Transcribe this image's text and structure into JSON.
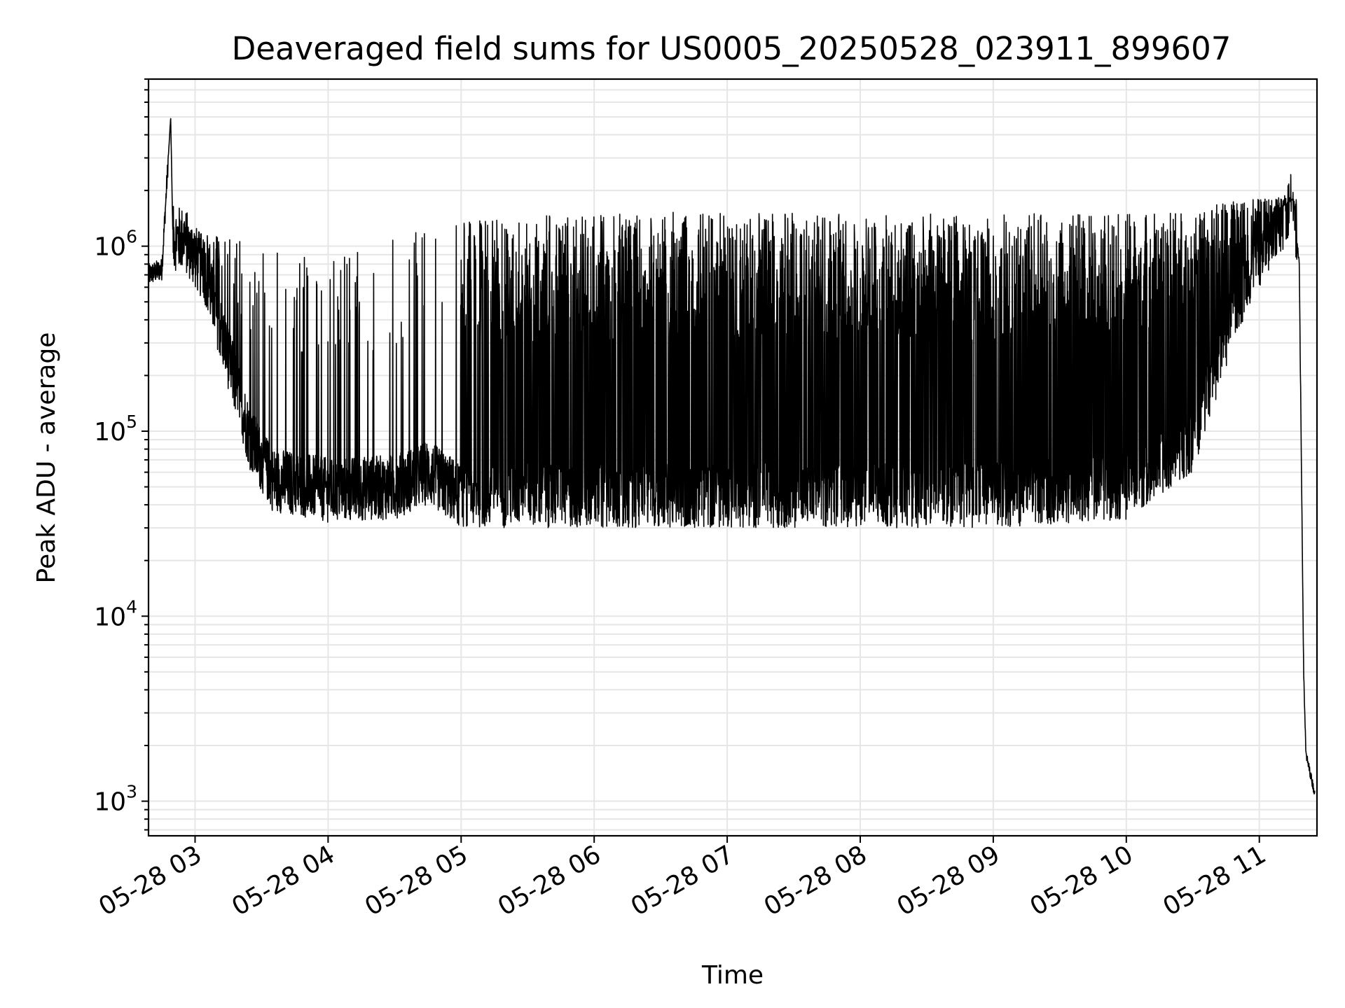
{
  "chart_data": {
    "type": "line",
    "title": "Deaveraged field sums for US0005_20250528_023911_899607",
    "xlabel": "Time",
    "ylabel": "Peak ADU - average",
    "x_axis": {
      "type": "time",
      "range": [
        "2025-05-28 02:39",
        "2025-05-28 11:26"
      ],
      "tick_labels": [
        "05-28 03",
        "05-28 04",
        "05-28 05",
        "05-28 06",
        "05-28 07",
        "05-28 08",
        "05-28 09",
        "05-28 10",
        "05-28 11"
      ],
      "tick_values": [
        "2025-05-28 03:00",
        "2025-05-28 04:00",
        "2025-05-28 05:00",
        "2025-05-28 06:00",
        "2025-05-28 07:00",
        "2025-05-28 08:00",
        "2025-05-28 09:00",
        "2025-05-28 10:00",
        "2025-05-28 11:00"
      ]
    },
    "y_axis": {
      "scale": "log",
      "range": [
        650,
        8000000
      ],
      "tick_values": [
        1000,
        10000,
        100000,
        1000000
      ],
      "tick_labels": [
        {
          "base": "10",
          "exp": "3"
        },
        {
          "base": "10",
          "exp": "4"
        },
        {
          "base": "10",
          "exp": "5"
        },
        {
          "base": "10",
          "exp": "6"
        }
      ]
    },
    "grid": true,
    "line_color": "#000000",
    "series": [
      {
        "points": [
          [
            "2025-05-28 02:39",
            700000
          ],
          [
            "2025-05-28 02:45",
            750000
          ],
          [
            "2025-05-28 02:49",
            5000000
          ],
          [
            "2025-05-28 02:50",
            1100000
          ],
          [
            "2025-05-28 02:55",
            1100000
          ],
          [
            "2025-05-28 03:05",
            700000
          ],
          [
            "2025-05-28 03:15",
            250000
          ],
          [
            "2025-05-28 03:25",
            90000
          ],
          [
            "2025-05-28 03:35",
            55000
          ],
          [
            "2025-05-28 04:00",
            48000
          ],
          [
            "2025-05-28 04:30",
            50000
          ],
          [
            "2025-05-28 04:45",
            60000
          ],
          [
            "2025-05-28 05:00",
            45000
          ],
          [
            "2025-05-28 06:00",
            45000
          ],
          [
            "2025-05-28 07:00",
            45000
          ],
          [
            "2025-05-28 08:00",
            45000
          ],
          [
            "2025-05-28 09:00",
            45000
          ],
          [
            "2025-05-28 10:00",
            50000
          ],
          [
            "2025-05-28 10:30",
            90000
          ],
          [
            "2025-05-28 10:50",
            500000
          ],
          [
            "2025-05-28 11:00",
            900000
          ],
          [
            "2025-05-28 11:15",
            1700000
          ],
          [
            "2025-05-28 11:18",
            800000
          ],
          [
            "2025-05-28 11:20",
            5000
          ],
          [
            "2025-05-28 11:21",
            1800
          ],
          [
            "2025-05-28 11:25",
            1100
          ]
        ],
        "upper_envelope": [
          [
            "2025-05-28 03:00",
            1200000
          ],
          [
            "2025-05-28 04:00",
            900000
          ],
          [
            "2025-05-28 05:00",
            1400000
          ],
          [
            "2025-05-28 06:00",
            1500000
          ],
          [
            "2025-05-28 07:00",
            1550000
          ],
          [
            "2025-05-28 08:00",
            1500000
          ],
          [
            "2025-05-28 09:00",
            1500000
          ],
          [
            "2025-05-28 10:00",
            1500000
          ],
          [
            "2025-05-28 11:00",
            1800000
          ]
        ]
      }
    ]
  }
}
